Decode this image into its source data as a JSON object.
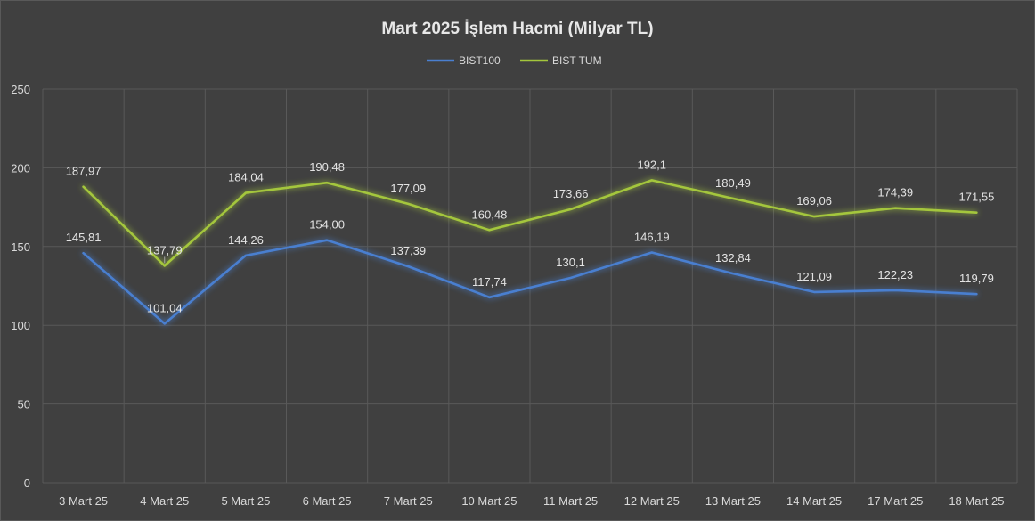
{
  "chart_data": {
    "type": "line",
    "title": "Mart 2025 İşlem Hacmi (Milyar TL)",
    "xlabel": "",
    "ylabel": "",
    "ylim": [
      0,
      250
    ],
    "yticks": [
      "0",
      "50",
      "100",
      "150",
      "200",
      "250"
    ],
    "ytick_values": [
      0,
      50,
      100,
      150,
      200,
      250
    ],
    "grid": true,
    "legend_position": "top",
    "categories": [
      "3 Mart 25",
      "4 Mart 25",
      "5 Mart 25",
      "6 Mart 25",
      "7 Mart 25",
      "10 Mart 25",
      "11 Mart 25",
      "12 Mart 25",
      "13 Mart 25",
      "14 Mart 25",
      "17 Mart 25",
      "18 Mart 25"
    ],
    "series": [
      {
        "name": "BIST100",
        "color": "#4a7fd0",
        "values": [
          145.81,
          101.04,
          144.26,
          154.0,
          137.39,
          117.74,
          130.1,
          146.19,
          132.84,
          121.09,
          122.23,
          119.79
        ],
        "labels": [
          "145,81",
          "101,04",
          "144,26",
          "154,00",
          "137,39",
          "117,74",
          "130,1",
          "146,19",
          "132,84",
          "121,09",
          "122,23",
          "119,79"
        ]
      },
      {
        "name": "BIST TUM",
        "color": "#a4c63c",
        "values": [
          187.97,
          137.79,
          184.04,
          190.48,
          177.09,
          160.48,
          173.66,
          192.1,
          180.49,
          169.06,
          174.39,
          171.55
        ],
        "labels": [
          "187,97",
          "137,79",
          "184,04",
          "190,48",
          "177,09",
          "160,48",
          "173,66",
          "192,1",
          "180,49",
          "169,06",
          "174,39",
          "171,55"
        ]
      }
    ]
  }
}
